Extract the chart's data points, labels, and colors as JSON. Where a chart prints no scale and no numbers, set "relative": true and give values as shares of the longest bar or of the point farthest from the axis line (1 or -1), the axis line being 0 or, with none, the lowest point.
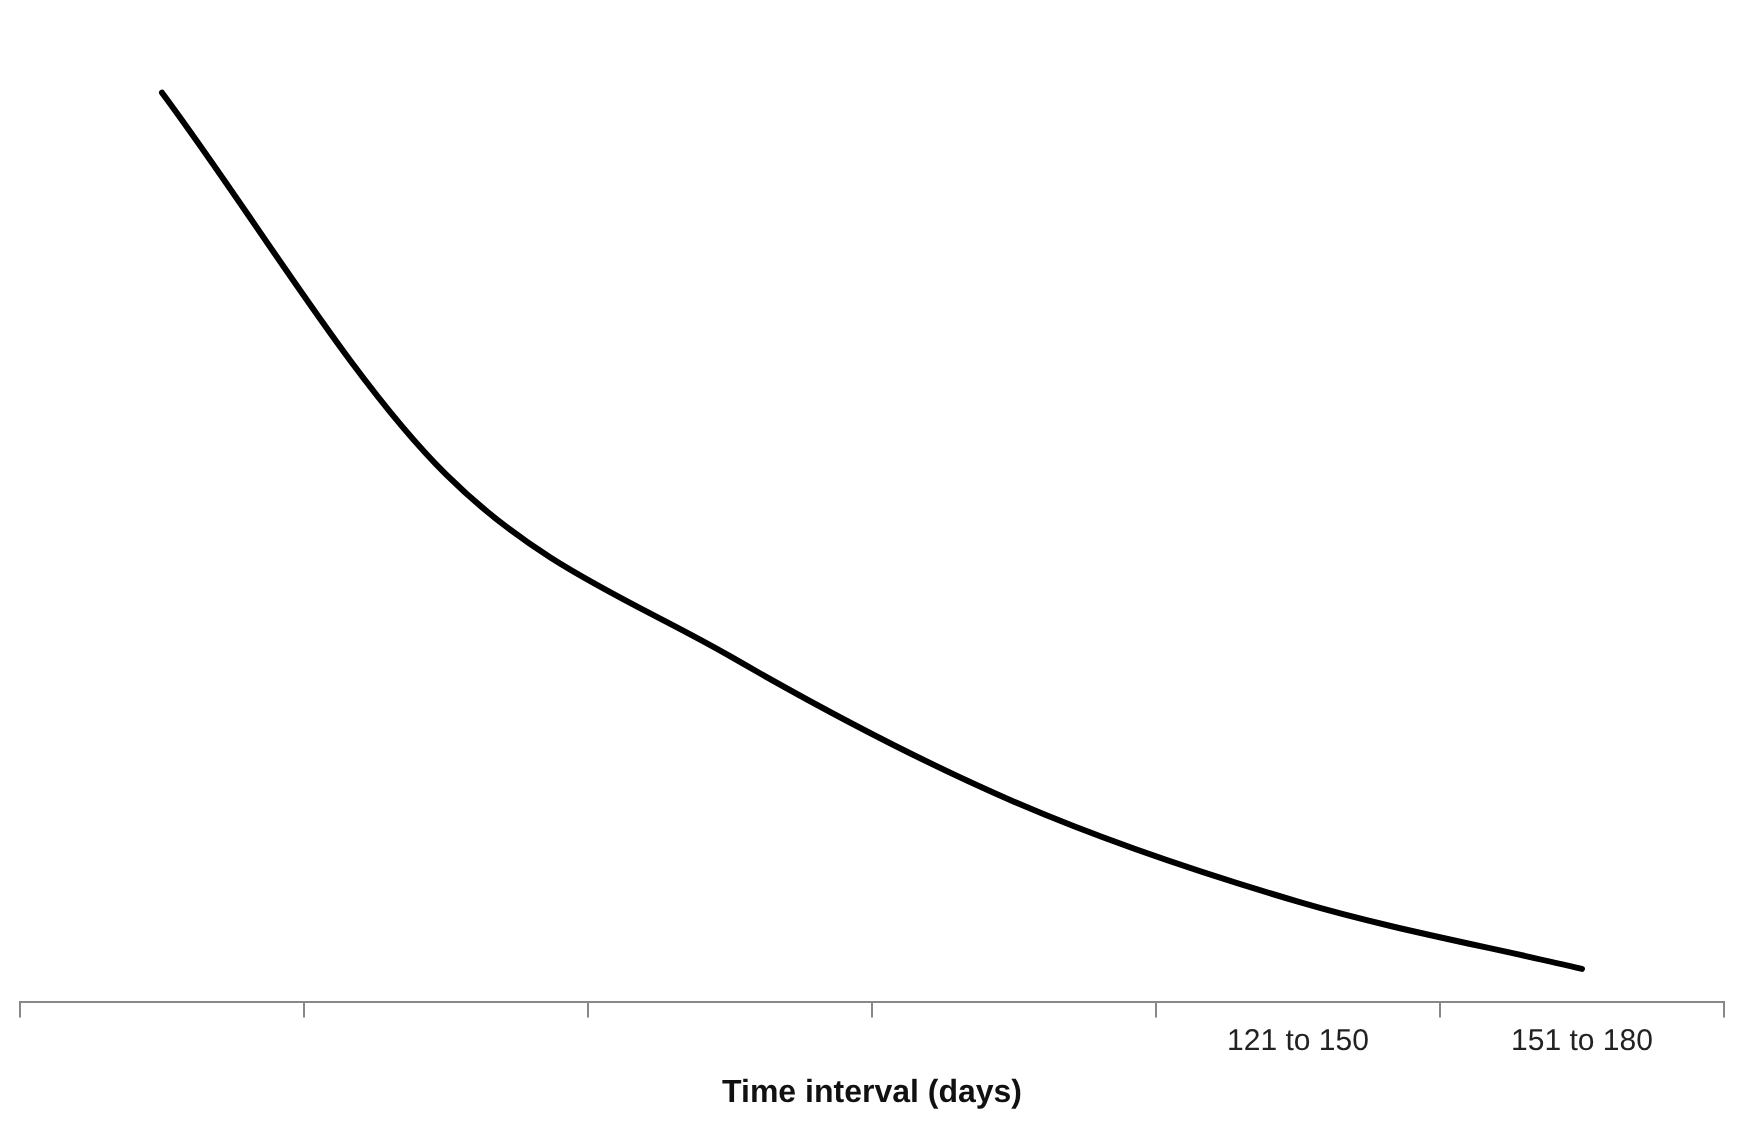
{
  "chart_data": {
    "type": "line",
    "xlabel": "Time interval (days)",
    "categories": [
      null,
      null,
      null,
      null,
      "121 to 150",
      "151 to 180"
    ],
    "series": [
      {
        "color": "#000000",
        "values": [
          1,
          0.58,
          0.38,
          0.22,
          0.11,
          0.036
        ]
      }
    ],
    "relative": true,
    "marker": "none",
    "line_style": "solid",
    "grid": false,
    "legend": false,
    "tick_labels": "x"
  }
}
